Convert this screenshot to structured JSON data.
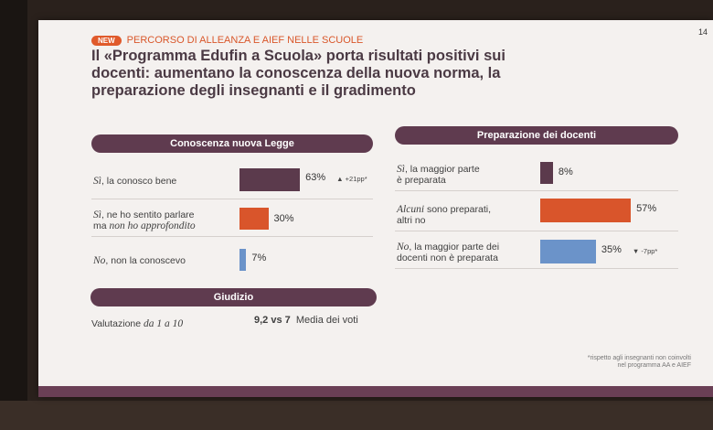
{
  "badge": "NEW",
  "kicker": "PERCORSO DI ALLEANZA E AIEF NELLE SCUOLE",
  "page_number": "14",
  "title": {
    "line1": "Il «Programma Edufin a Scuola» porta risultati positivi sui",
    "line2": "docenti: aumentano la conoscenza della nuova norma, la",
    "line3": "preparazione degli insegnanti e il gradimento"
  },
  "left": {
    "header": "Conoscenza nuova Legge",
    "rows": [
      {
        "em": "Sì",
        "text": ", la conosco bene",
        "value": "63%",
        "pct": 63,
        "delta": "▲ +21pp*",
        "color": "#5b3a4c"
      },
      {
        "em": "Sì",
        "text": ", ne ho sentito parlare",
        "text2_plain": "ma ",
        "text2_em": "non ho approfondito",
        "value": "30%",
        "pct": 30,
        "delta": "",
        "color": "#d9552b"
      },
      {
        "em": "No",
        "text": ", non la conoscevo",
        "value": "7%",
        "pct": 7,
        "delta": "",
        "color": "#6b93c9"
      }
    ]
  },
  "right": {
    "header": "Preparazione dei docenti",
    "rows": [
      {
        "em": "Sì",
        "text": ", la maggior parte",
        "text2": "è preparata",
        "value": "8%",
        "pct": 8,
        "delta": "",
        "color": "#5b3a4c"
      },
      {
        "em": "Alcuni",
        "text": " sono preparati,",
        "text2": "altri no",
        "value": "57%",
        "pct": 57,
        "delta": "",
        "color": "#d9552b"
      },
      {
        "em": "No",
        "text": ", la maggior parte dei",
        "text2": "docenti non è preparata",
        "value": "35%",
        "pct": 35,
        "delta": "▼ -7pp*",
        "color": "#6b93c9"
      }
    ]
  },
  "giudizio": {
    "header": "Giudizio",
    "label_plain": "Valutazione ",
    "label_em": "da 1 a 10",
    "value": "9,2 vs 7",
    "value_suffix": "Media dei voti"
  },
  "footnote": {
    "line1": "*rispetto agli insegnanti non coinvolti",
    "line2": "nel programma AA e AIEF"
  }
}
